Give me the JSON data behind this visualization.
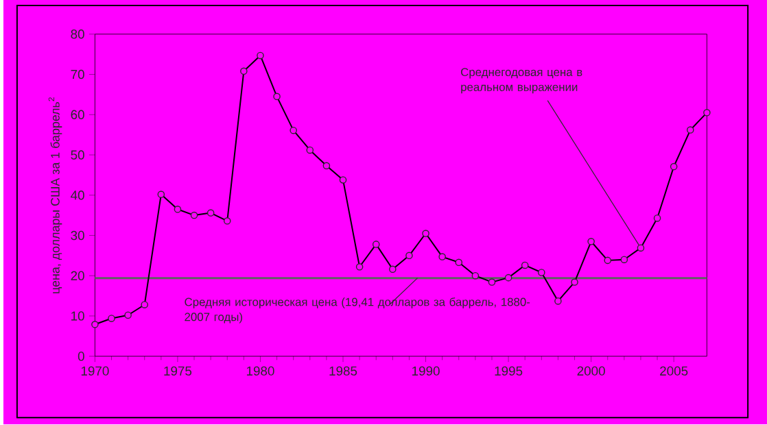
{
  "chart_data": {
    "type": "line",
    "ylabel": "цена, доллары США за 1 баррель$^{2}$",
    "x": [
      1970,
      1971,
      1972,
      1973,
      1974,
      1975,
      1976,
      1977,
      1978,
      1979,
      1980,
      1981,
      1982,
      1983,
      1984,
      1985,
      1986,
      1987,
      1988,
      1989,
      1990,
      1991,
      1992,
      1993,
      1994,
      1995,
      1996,
      1997,
      1998,
      1999,
      2000,
      2001,
      2002,
      2003,
      2004,
      2005,
      2006,
      2007
    ],
    "series": [
      {
        "color": "#000000",
        "values": [
          7.9,
          9.4,
          10.2,
          12.8,
          40.2,
          36.5,
          35.0,
          35.6,
          33.6,
          70.8,
          74.7,
          64.5,
          56.1,
          51.2,
          47.3,
          43.8,
          22.2,
          27.8,
          21.6,
          25.0,
          30.5,
          24.7,
          23.3,
          20.0,
          18.4,
          19.5,
          22.6,
          20.8,
          13.7,
          18.4,
          28.5,
          23.8,
          24.0,
          26.9,
          34.3,
          47.1,
          56.2,
          60.5
        ]
      }
    ],
    "xlim": [
      1970,
      2007
    ],
    "ylim": [
      0,
      80
    ],
    "xticks": [
      1970,
      1975,
      1980,
      1985,
      1990,
      1995,
      2000,
      2005
    ],
    "yticks": [
      0,
      10,
      20,
      30,
      40,
      50,
      60,
      70,
      80
    ],
    "marker": "circle",
    "line_style": "solid",
    "grid": false,
    "ref_lines": [
      {
        "axis": "y",
        "value": 19.41,
        "color": "#606060",
        "label": "Средняя историческая цена (19,41 долларов за баррель, 1880-2007 годы)"
      }
    ],
    "annotations": [
      {
        "text": "Среднегодовая цена в реальном выражении",
        "x": 2003,
        "y": 26.9
      }
    ]
  }
}
